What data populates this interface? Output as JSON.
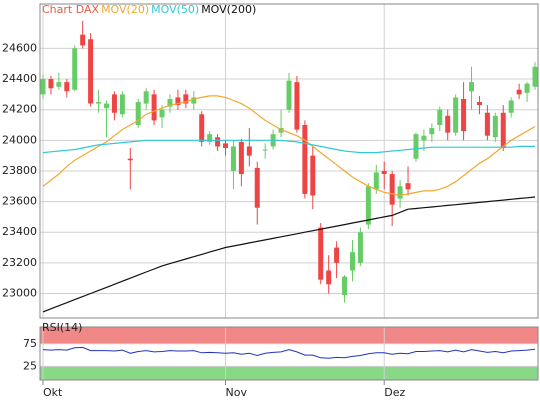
{
  "chart_data": [
    {
      "type": "candlestick",
      "title": "Chart DAX",
      "categories": [
        "Okt",
        null,
        null,
        null,
        null,
        null,
        null,
        null,
        null,
        null,
        null,
        null,
        null,
        null,
        null,
        null,
        null,
        null,
        null,
        null,
        null,
        null,
        null,
        "Nov",
        null,
        null,
        null,
        null,
        null,
        null,
        null,
        null,
        null,
        null,
        null,
        null,
        null,
        null,
        null,
        null,
        null,
        null,
        null,
        "Dez",
        null,
        null,
        null,
        null,
        null,
        null,
        null,
        null,
        null,
        null,
        null,
        null,
        null,
        null,
        null,
        null,
        null,
        null,
        null
      ],
      "open": [
        24300,
        24400,
        24350,
        24380,
        24330,
        24690,
        24660,
        24240,
        24210,
        24300,
        24170,
        23880,
        24100,
        24240,
        24300,
        24150,
        24220,
        24280,
        24300,
        24240,
        24170,
        23990,
        24020,
        23980,
        23800,
        23990,
        23960,
        23820,
        23940,
        23960,
        24050,
        24200,
        24380,
        24100,
        23900,
        23430,
        23150,
        23300,
        22990,
        23150,
        23200,
        23450,
        23680,
        23800,
        23780,
        23620,
        23720,
        23880,
        24000,
        24040,
        24100,
        24160,
        24050,
        24270,
        24320,
        24250,
        24180,
        24020,
        24180,
        24180,
        24330,
        24310,
        24350
      ],
      "high": [
        24430,
        24420,
        24440,
        24400,
        24620,
        24780,
        24700,
        24330,
        24260,
        24320,
        24320,
        23950,
        24270,
        24340,
        24330,
        24230,
        24300,
        24330,
        24330,
        24320,
        24190,
        24060,
        24040,
        24000,
        24000,
        24010,
        24080,
        23860,
        23980,
        24070,
        24200,
        24440,
        24420,
        24130,
        23960,
        23460,
        23250,
        23340,
        23120,
        23350,
        23430,
        23720,
        23840,
        23860,
        23800,
        23740,
        23830,
        24050,
        24070,
        24110,
        24220,
        24200,
        24300,
        24380,
        24480,
        24290,
        24230,
        24180,
        24230,
        24280,
        24370,
        24380,
        24510
      ],
      "low": [
        24270,
        24300,
        24330,
        24280,
        24320,
        24600,
        24220,
        24180,
        24020,
        24130,
        24150,
        23680,
        24080,
        24200,
        24100,
        24080,
        24180,
        24200,
        24210,
        24200,
        23960,
        23970,
        23930,
        23900,
        23680,
        23700,
        23830,
        23450,
        23880,
        23940,
        24020,
        24180,
        24050,
        23620,
        23550,
        23060,
        23000,
        23100,
        22940,
        23080,
        23180,
        23420,
        23650,
        23680,
        23440,
        23560,
        23640,
        23860,
        23930,
        23990,
        24060,
        24000,
        24030,
        24000,
        24200,
        24170,
        24000,
        23990,
        23930,
        24150,
        24270,
        24250,
        24330
      ],
      "close": [
        24400,
        24340,
        24380,
        24320,
        24600,
        24620,
        24240,
        24250,
        24240,
        24180,
        24300,
        23870,
        24250,
        24320,
        24130,
        24200,
        24270,
        24230,
        24240,
        24280,
        23990,
        24040,
        23960,
        23950,
        23960,
        23780,
        23900,
        23560,
        23940,
        24040,
        24080,
        24390,
        24070,
        23650,
        23640,
        23090,
        23060,
        23200,
        23110,
        23270,
        23400,
        23700,
        23790,
        23780,
        23580,
        23700,
        23680,
        24040,
        24030,
        24080,
        24200,
        24050,
        24280,
        24060,
        24380,
        24230,
        24030,
        24160,
        23950,
        24260,
        24300,
        24370,
        24480
      ],
      "up_color": "#66cc66",
      "down_color": "#ee4444",
      "series": [
        {
          "name": "MOV(20)",
          "color": "#f0a830",
          "values": [
            23700,
            23740,
            23780,
            23830,
            23870,
            23900,
            23930,
            23960,
            23990,
            24030,
            24070,
            24100,
            24130,
            24170,
            24190,
            24210,
            24230,
            24240,
            24250,
            24270,
            24280,
            24290,
            24290,
            24280,
            24260,
            24240,
            24210,
            24170,
            24130,
            24100,
            24070,
            24050,
            24030,
            24000,
            23960,
            23920,
            23880,
            23840,
            23800,
            23760,
            23730,
            23700,
            23680,
            23660,
            23650,
            23640,
            23650,
            23660,
            23670,
            23670,
            23680,
            23700,
            23730,
            23770,
            23810,
            23850,
            23880,
            23920,
            23960,
            24000,
            24030,
            24060,
            24090
          ]
        },
        {
          "name": "MOV(50)",
          "color": "#30c8d8",
          "values": [
            23920,
            23925,
            23930,
            23935,
            23940,
            23950,
            23960,
            23970,
            23975,
            23980,
            23985,
            23990,
            23995,
            24000,
            24000,
            24000,
            24000,
            24000,
            24000,
            24000,
            24000,
            24000,
            24000,
            24000,
            24000,
            24000,
            24000,
            24000,
            24000,
            24000,
            24000,
            23995,
            23990,
            23980,
            23970,
            23960,
            23950,
            23940,
            23930,
            23925,
            23920,
            23920,
            23920,
            23925,
            23930,
            23935,
            23940,
            23945,
            23950,
            23955,
            23955,
            23955,
            23955,
            23955,
            23955,
            23955,
            23955,
            23955,
            23955,
            23955,
            23960,
            23960,
            23960
          ]
        },
        {
          "name": "MOV(200)",
          "color": "#111111",
          "values": [
            22880,
            22900,
            22920,
            22940,
            22960,
            22980,
            23000,
            23020,
            23040,
            23060,
            23080,
            23100,
            23120,
            23140,
            23160,
            23180,
            23195,
            23210,
            23225,
            23240,
            23255,
            23270,
            23285,
            23300,
            23310,
            23320,
            23330,
            23340,
            23350,
            23360,
            23370,
            23380,
            23390,
            23400,
            23410,
            23420,
            23430,
            23440,
            23450,
            23460,
            23470,
            23480,
            23490,
            23500,
            23510,
            23530,
            23550,
            23555,
            23560,
            23565,
            23570,
            23575,
            23580,
            23585,
            23590,
            23595,
            23600,
            23605,
            23610,
            23615,
            23620,
            23625,
            23630
          ]
        }
      ],
      "ylim": [
        22840,
        24890
      ],
      "yticks": [
        23000,
        23200,
        23400,
        23600,
        23800,
        24000,
        24200,
        24400,
        24600
      ],
      "grid": true
    },
    {
      "type": "line",
      "title": "RSI(14)",
      "series": [
        {
          "color": "#2233bb",
          "values": [
            62,
            61,
            62,
            61,
            66,
            67,
            60,
            60,
            60,
            59,
            61,
            54,
            58,
            60,
            57,
            58,
            60,
            59,
            59,
            60,
            55,
            56,
            55,
            54,
            55,
            52,
            54,
            49,
            54,
            56,
            57,
            62,
            57,
            50,
            50,
            44,
            43,
            45,
            44,
            47,
            49,
            53,
            55,
            55,
            52,
            54,
            53,
            58,
            58,
            59,
            60,
            57,
            61,
            57,
            62,
            59,
            56,
            58,
            55,
            59,
            60,
            61,
            63
          ]
        }
      ],
      "band_colors": [
        "#f08888",
        "#88d888"
      ],
      "ylim": [
        -5,
        112
      ],
      "yticks": [
        25,
        75
      ],
      "grid": true
    }
  ]
}
